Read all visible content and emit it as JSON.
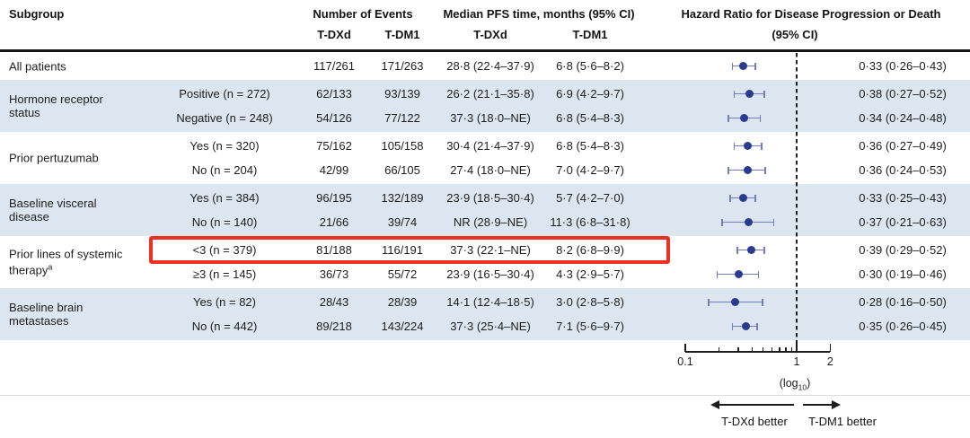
{
  "columns": {
    "subgroup": "Subgroup",
    "events_group": "Number of Events",
    "pfs_group": "Median PFS time, months (95% CI)",
    "hr_group_line1": "Hazard Ratio for Disease Progression or Death",
    "hr_group_line2": "(95% CI)",
    "events_tdxd": "T-DXd",
    "events_tdm1": "T-DM1",
    "pfs_tdxd": "T-DXd",
    "pfs_tdm1": "T-DM1"
  },
  "groups": [
    {
      "label": "All patients",
      "rows": [
        {
          "level": "",
          "events_tdxd": "117/261",
          "events_tdm1": "171/263",
          "pfs_tdxd": "28·8 (22·4–37·9)",
          "pfs_tdm1": "6·8 (5·6–8·2)",
          "hr_ci": "0·33 (0·26–0·43)"
        }
      ]
    },
    {
      "label": "Hormone receptor status",
      "rows": [
        {
          "level": "Positive (n = 272)",
          "events_tdxd": "62/133",
          "events_tdm1": "93/139",
          "pfs_tdxd": "26·2 (21·1–35·8)",
          "pfs_tdm1": "6·9 (4·2–9·7)",
          "hr_ci": "0·38 (0·27–0·52)"
        },
        {
          "level": "Negative (n = 248)",
          "events_tdxd": "54/126",
          "events_tdm1": "77/122",
          "pfs_tdxd": "37·3 (18·0–NE)",
          "pfs_tdm1": "6·8 (5·4–8·3)",
          "hr_ci": "0·34 (0·24–0·48)"
        }
      ]
    },
    {
      "label": "Prior pertuzumab",
      "rows": [
        {
          "level": "Yes (n = 320)",
          "events_tdxd": "75/162",
          "events_tdm1": "105/158",
          "pfs_tdxd": "30·4 (21·4–37·9)",
          "pfs_tdm1": "6·8 (5·4–8·3)",
          "hr_ci": "0·36 (0·27–0·49)"
        },
        {
          "level": "No (n = 204)",
          "events_tdxd": "42/99",
          "events_tdm1": "66/105",
          "pfs_tdxd": "27·4 (18·0–NE)",
          "pfs_tdm1": "7·0 (4·2–9·7)",
          "hr_ci": "0·36 (0·24–0·53)"
        }
      ]
    },
    {
      "label": "Baseline visceral disease",
      "rows": [
        {
          "level": "Yes (n = 384)",
          "events_tdxd": "96/195",
          "events_tdm1": "132/189",
          "pfs_tdxd": "23·9 (18·5–30·4)",
          "pfs_tdm1": "5·7 (4·2–7·0)",
          "hr_ci": "0·33 (0·25–0·43)"
        },
        {
          "level": "No (n = 140)",
          "events_tdxd": "21/66",
          "events_tdm1": "39/74",
          "pfs_tdxd": "NR (28·9–NE)",
          "pfs_tdm1": "11·3 (6·8–31·8)",
          "hr_ci": "0·37 (0·21–0·63)"
        }
      ]
    },
    {
      "label": "Prior lines of systemic therapy",
      "sup": "a",
      "rows": [
        {
          "level": "<3 (n = 379)",
          "events_tdxd": "81/188",
          "events_tdm1": "116/191",
          "pfs_tdxd": "37·3 (22·1–NE)",
          "pfs_tdm1": "8·2 (6·8–9·9)",
          "hr_ci": "0·39 (0·29–0·52)",
          "highlighted": true
        },
        {
          "level": "≥3 (n = 145)",
          "events_tdxd": "36/73",
          "events_tdm1": "55/72",
          "pfs_tdxd": "23·9 (16·5–30·4)",
          "pfs_tdm1": "4·3 (2·9–5·7)",
          "hr_ci": "0·30 (0·19–0·46)"
        }
      ]
    },
    {
      "label": "Baseline brain metastases",
      "rows": [
        {
          "level": "Yes (n = 82)",
          "events_tdxd": "28/43",
          "events_tdm1": "28/39",
          "pfs_tdxd": "14·1 (12·4–18·5)",
          "pfs_tdm1": "3·0 (2·8–5·8)",
          "hr_ci": "0·28 (0·16–0·50)"
        },
        {
          "level": "No (n = 442)",
          "events_tdxd": "89/218",
          "events_tdm1": "143/224",
          "pfs_tdxd": "37·3 (25·4–NE)",
          "pfs_tdm1": "7·1 (5·6–9·7)",
          "hr_ci": "0·35 (0·26–0·45)"
        }
      ]
    }
  ],
  "axis": {
    "log_prefix": "(log",
    "log_sub": "10",
    "log_suffix": ")"
  },
  "footer": {
    "left_arrow_label": "T-DXd better",
    "right_arrow_label": "T-DM1 better"
  },
  "colors": {
    "band_blue": "#dce6f0",
    "marker": "#2a3b8f",
    "whisker": "#717fb8",
    "highlight": "#ee3124",
    "reference_line": "#1d1d1d"
  },
  "chart_data": {
    "type": "forest",
    "x_axis": {
      "scale": "log10",
      "range": [
        0.1,
        2
      ],
      "reference_line": 1,
      "ticks": [
        0.1,
        0.2,
        0.3,
        0.4,
        0.5,
        0.6,
        0.7,
        0.8,
        0.9,
        1,
        2
      ],
      "labeled_ticks": [
        {
          "v": 0.1,
          "label": "0.1"
        },
        {
          "v": 1,
          "label": "1"
        },
        {
          "v": 2,
          "label": "2"
        }
      ]
    },
    "estimates": [
      {
        "subgroup": "All patients",
        "hr": 0.33,
        "ci_lower": 0.26,
        "ci_upper": 0.43
      },
      {
        "subgroup": "Hormone receptor status: Positive",
        "hr": 0.38,
        "ci_lower": 0.27,
        "ci_upper": 0.52
      },
      {
        "subgroup": "Hormone receptor status: Negative",
        "hr": 0.34,
        "ci_lower": 0.24,
        "ci_upper": 0.48
      },
      {
        "subgroup": "Prior pertuzumab: Yes",
        "hr": 0.36,
        "ci_lower": 0.27,
        "ci_upper": 0.49
      },
      {
        "subgroup": "Prior pertuzumab: No",
        "hr": 0.36,
        "ci_lower": 0.24,
        "ci_upper": 0.53
      },
      {
        "subgroup": "Baseline visceral disease: Yes",
        "hr": 0.33,
        "ci_lower": 0.25,
        "ci_upper": 0.43
      },
      {
        "subgroup": "Baseline visceral disease: No",
        "hr": 0.37,
        "ci_lower": 0.21,
        "ci_upper": 0.63
      },
      {
        "subgroup": "Prior lines of systemic therapy: <3",
        "hr": 0.39,
        "ci_lower": 0.29,
        "ci_upper": 0.52
      },
      {
        "subgroup": "Prior lines of systemic therapy: ≥3",
        "hr": 0.3,
        "ci_lower": 0.19,
        "ci_upper": 0.46
      },
      {
        "subgroup": "Baseline brain metastases: Yes",
        "hr": 0.28,
        "ci_lower": 0.16,
        "ci_upper": 0.5
      },
      {
        "subgroup": "Baseline brain metastases: No",
        "hr": 0.35,
        "ci_lower": 0.26,
        "ci_upper": 0.45
      }
    ]
  }
}
